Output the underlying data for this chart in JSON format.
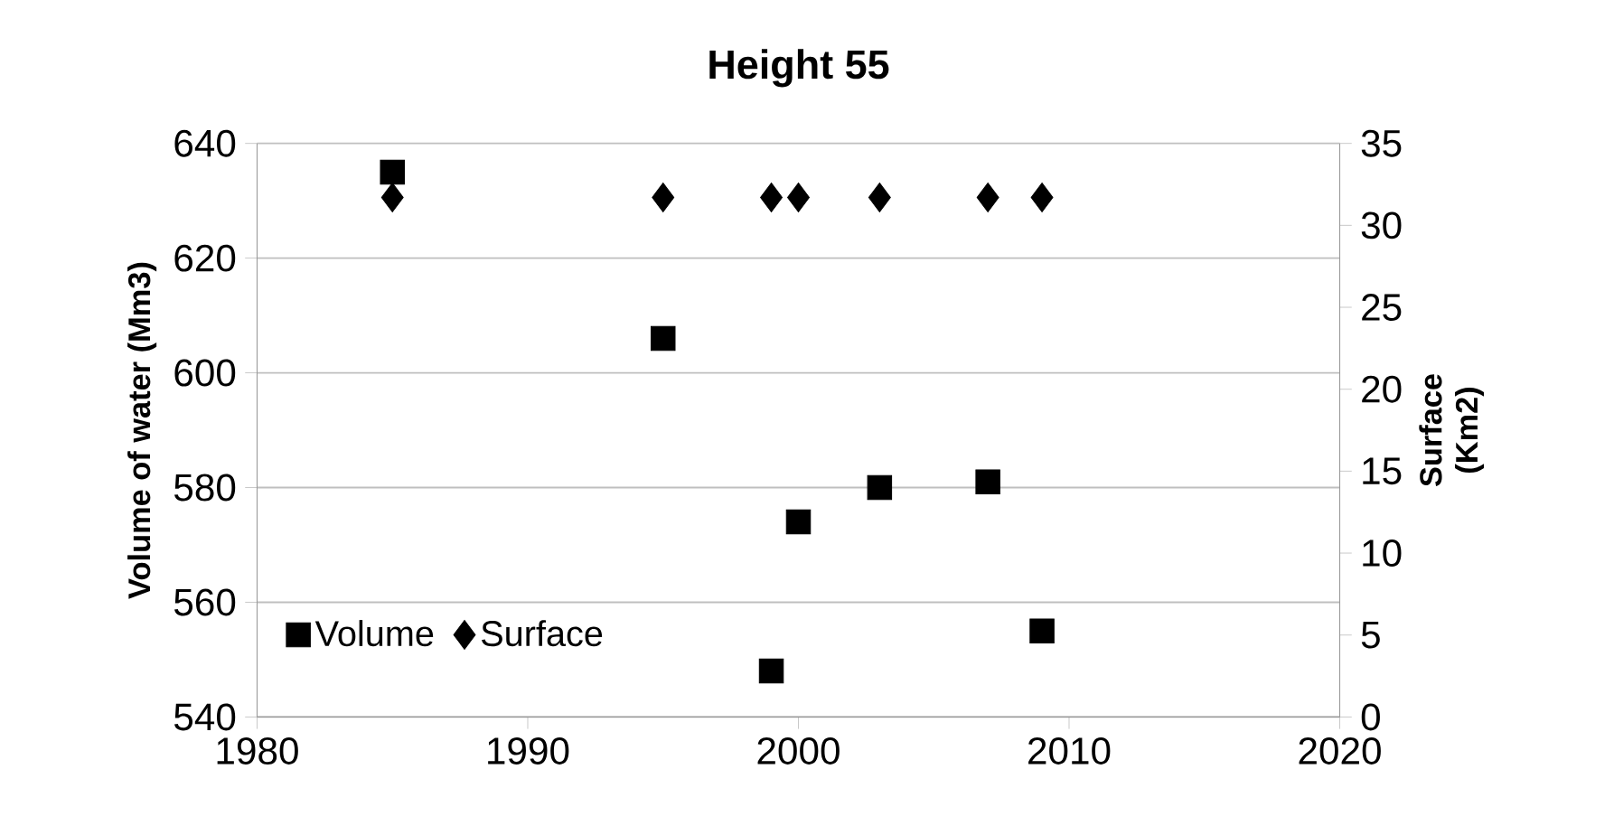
{
  "chart_data": {
    "type": "scatter",
    "title": "Height 55",
    "ylabel": "Volume of water (Mm3)",
    "y2label": "Surface (Km2)",
    "x": [
      1985,
      1995,
      1999,
      2000,
      2003,
      2007,
      2009
    ],
    "xlim": [
      1980,
      2020
    ],
    "xticks": [
      1980,
      1990,
      2000,
      2010,
      2020
    ],
    "ylim": [
      540,
      640
    ],
    "yticks": [
      540,
      560,
      580,
      600,
      620,
      640
    ],
    "y2lim": [
      0,
      35
    ],
    "y2ticks": [
      0,
      5,
      10,
      15,
      20,
      25,
      30,
      35
    ],
    "grid": "y",
    "legend": "bottom left",
    "series": [
      {
        "name": "Volume",
        "color": "#000000",
        "marker": "square",
        "values": [
          635,
          606,
          548,
          574,
          580,
          581,
          555
        ]
      },
      {
        "name": "Surface",
        "color": "#000000",
        "marker": "diamond",
        "axis": "y2",
        "values": [
          31.7,
          31.7,
          31.7,
          31.7,
          31.7,
          31.7,
          31.7
        ]
      }
    ]
  }
}
